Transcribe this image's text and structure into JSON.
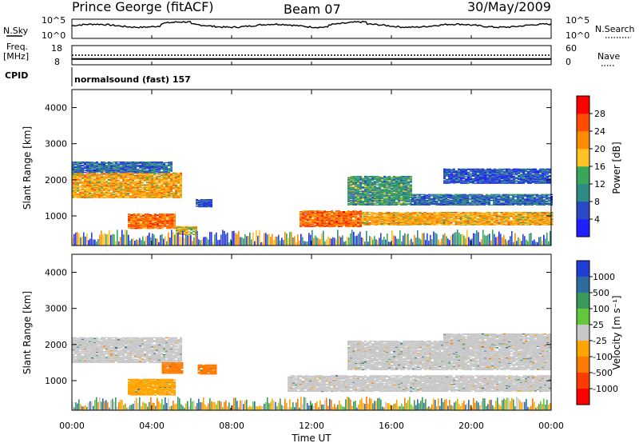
{
  "header": {
    "station": "Prince George (fitACF)",
    "beam": "Beam 07",
    "date": "30/May/2009"
  },
  "noise_panel": {
    "left_label": "N.Sky",
    "right_label": "N.Search",
    "left_ticks": [
      "10^5",
      "10^0"
    ],
    "right_ticks": [
      "10^5",
      "10^0"
    ]
  },
  "freq_panel": {
    "left_label_line1": "Freq.",
    "left_label_line2": "[MHz]",
    "right_label": "Nave",
    "left_ticks": [
      "18",
      "8"
    ],
    "right_ticks": [
      "60",
      "0"
    ],
    "freq_mhz": 11.0,
    "nave": 30
  },
  "cpid": {
    "label": "CPID",
    "program": "normalsound (fast) 157"
  },
  "axes": {
    "xlabel": "Time UT",
    "ylabel": "Slant Range [km]",
    "x_ticks": [
      "00:00",
      "04:00",
      "08:00",
      "12:00",
      "16:00",
      "20:00",
      "00:00"
    ],
    "y_ticks": [
      "1000",
      "2000",
      "3000",
      "4000"
    ],
    "ylim": [
      180,
      4500
    ],
    "xlim_hours": [
      0,
      24
    ]
  },
  "power_scale": {
    "label": "Power [dB]",
    "ticks": [
      "4",
      "8",
      "12",
      "16",
      "20",
      "24",
      "28"
    ],
    "colors": [
      "#1f1fff",
      "#2a48c8",
      "#2e8a84",
      "#38a858",
      "#ffc125",
      "#ff8c00",
      "#ff4d00",
      "#ff0000"
    ]
  },
  "velocity_scale": {
    "label": "Velocity [m s⁻¹]",
    "ticks": [
      "1000",
      "500",
      "100",
      "25",
      "-25",
      "-100",
      "-500",
      "-1000"
    ],
    "colors": [
      "#1f3fd6",
      "#2e6b9e",
      "#3a9a5c",
      "#62c83c",
      "#c8c8c8",
      "#ffa500",
      "#ff7a00",
      "#ff3c00",
      "#ff0000"
    ]
  },
  "chart_data": {
    "type": "heatmap",
    "title": "Prince George (fitACF)",
    "xlabel": "Time UT",
    "ylabel": "Slant Range [km]",
    "x_range_hours": [
      0,
      24
    ],
    "y_range_km": [
      180,
      4500
    ],
    "power_regions": [
      {
        "t0": 0.0,
        "t1": 5.5,
        "r0": 1500,
        "r1": 2200,
        "level": 20
      },
      {
        "t0": 0.0,
        "t1": 5.0,
        "r0": 2200,
        "r1": 2500,
        "level": 8
      },
      {
        "t0": 2.8,
        "t1": 5.2,
        "r0": 650,
        "r1": 1050,
        "level": 24
      },
      {
        "t0": 5.2,
        "t1": 6.2,
        "r0": 480,
        "r1": 700,
        "level": 18
      },
      {
        "t0": 6.2,
        "t1": 7.0,
        "r0": 1250,
        "r1": 1450,
        "level": 6
      },
      {
        "t0": 11.4,
        "t1": 14.5,
        "r0": 700,
        "r1": 1150,
        "level": 24
      },
      {
        "t0": 14.5,
        "t1": 24.0,
        "r0": 750,
        "r1": 1100,
        "level": 20
      },
      {
        "t0": 13.8,
        "t1": 17.0,
        "r0": 1300,
        "r1": 2100,
        "level": 12
      },
      {
        "t0": 17.0,
        "t1": 24.0,
        "r0": 1300,
        "r1": 1600,
        "level": 8
      },
      {
        "t0": 18.6,
        "t1": 24.0,
        "r0": 1900,
        "r1": 2300,
        "level": 6
      }
    ],
    "velocity_regions": [
      {
        "t0": 0.0,
        "t1": 5.5,
        "r0": 1500,
        "r1": 2200,
        "velocity": 0
      },
      {
        "t0": 2.8,
        "t1": 5.2,
        "r0": 600,
        "r1": 1050,
        "velocity": -100
      },
      {
        "t0": 4.5,
        "t1": 5.5,
        "r0": 1200,
        "r1": 1500,
        "velocity": -500
      },
      {
        "t0": 6.3,
        "t1": 7.2,
        "r0": 1180,
        "r1": 1450,
        "velocity": -500
      },
      {
        "t0": 10.8,
        "t1": 24.0,
        "r0": 700,
        "r1": 1150,
        "velocity": 0
      },
      {
        "t0": 13.8,
        "t1": 24.0,
        "r0": 1300,
        "r1": 2100,
        "velocity": 0
      },
      {
        "t0": 18.6,
        "t1": 24.0,
        "r0": 1950,
        "r1": 2300,
        "velocity": 0
      }
    ]
  }
}
